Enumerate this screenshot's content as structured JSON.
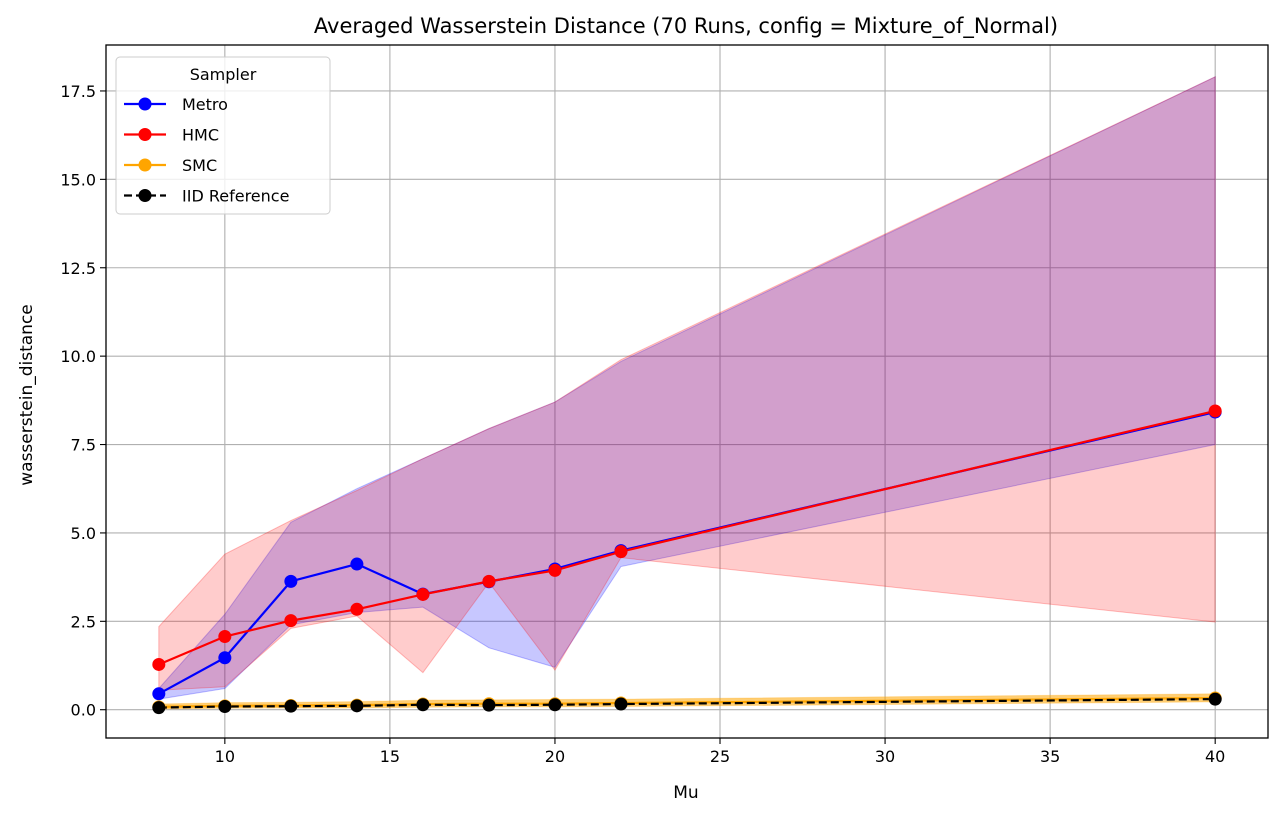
{
  "chart_data": {
    "type": "line",
    "title": "Averaged Wasserstein Distance (70 Runs, config = Mixture_of_Normal)",
    "xlabel": "Mu",
    "ylabel": "wasserstein_distance",
    "xlim": [
      6.4,
      41.6
    ],
    "ylim": [
      -0.8,
      18.8
    ],
    "xticks": [
      10,
      15,
      20,
      25,
      30,
      35,
      40
    ],
    "yticks": [
      0.0,
      2.5,
      5.0,
      7.5,
      10.0,
      12.5,
      15.0,
      17.5
    ],
    "grid": true,
    "legend": {
      "title": "Sampler",
      "position": "top-left"
    },
    "x": [
      8,
      10,
      12,
      14,
      16,
      18,
      20,
      22,
      40
    ],
    "series": [
      {
        "name": "Metro",
        "color": "#0000ff",
        "linestyle": "solid",
        "values": [
          0.45,
          1.47,
          3.63,
          4.12,
          3.27,
          3.62,
          3.98,
          4.5,
          8.42
        ],
        "band_lower": [
          0.3,
          0.6,
          2.4,
          2.75,
          2.9,
          1.75,
          1.2,
          4.05,
          7.5
        ],
        "band_upper": [
          0.6,
          2.7,
          5.3,
          6.25,
          7.1,
          7.95,
          8.7,
          9.85,
          17.9
        ]
      },
      {
        "name": "HMC",
        "color": "#ff0000",
        "linestyle": "solid",
        "values": [
          1.28,
          2.07,
          2.52,
          2.84,
          3.26,
          3.63,
          3.94,
          4.47,
          8.45
        ],
        "band_lower": [
          0.55,
          0.65,
          2.3,
          2.65,
          1.05,
          3.6,
          1.12,
          4.3,
          2.48
        ],
        "band_upper": [
          2.35,
          4.4,
          5.35,
          6.2,
          7.1,
          7.95,
          8.7,
          9.9,
          17.9
        ]
      },
      {
        "name": "SMC",
        "color": "#ffa500",
        "linestyle": "solid",
        "values": [
          0.08,
          0.11,
          0.12,
          0.13,
          0.16,
          0.17,
          0.17,
          0.19,
          0.33
        ],
        "band_lower": [
          0.02,
          0.04,
          0.05,
          0.05,
          0.07,
          0.08,
          0.08,
          0.09,
          0.22
        ],
        "band_upper": [
          0.16,
          0.2,
          0.21,
          0.23,
          0.27,
          0.28,
          0.29,
          0.3,
          0.45
        ]
      },
      {
        "name": "IID Reference",
        "color": "#000000",
        "linestyle": "dashed",
        "values": [
          0.06,
          0.09,
          0.1,
          0.11,
          0.14,
          0.13,
          0.14,
          0.16,
          0.3
        ]
      }
    ]
  }
}
